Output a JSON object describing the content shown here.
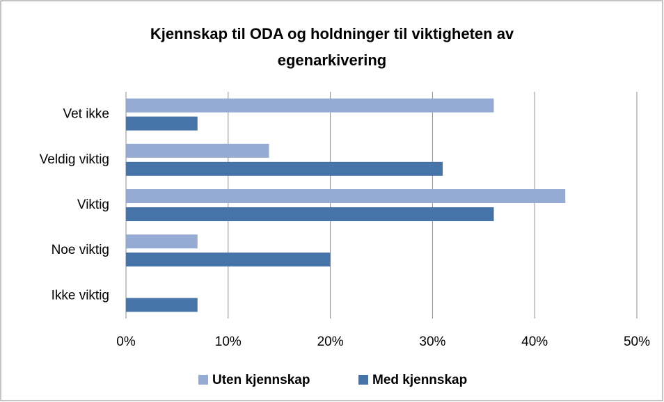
{
  "chart_data": {
    "type": "hbar",
    "title": "Kjennskap til ODA og holdninger til viktigheten av egenarkivering",
    "categories": [
      "Vet ikke",
      "Veldig viktig",
      "Viktig",
      "Noe viktig",
      "Ikke viktig"
    ],
    "series": [
      {
        "name": "Uten kjennskap",
        "color": "#95abd3",
        "values": [
          36,
          14,
          43,
          7,
          0
        ]
      },
      {
        "name": "Med kjennskap",
        "color": "#4673a8",
        "values": [
          7,
          31,
          36,
          20,
          7
        ]
      }
    ],
    "xlim": [
      0,
      50
    ],
    "xticks": [
      {
        "value": 0,
        "label": "0%"
      },
      {
        "value": 10,
        "label": "10%"
      },
      {
        "value": 20,
        "label": "20%"
      },
      {
        "value": 30,
        "label": "30%"
      },
      {
        "value": 40,
        "label": "40%"
      },
      {
        "value": 50,
        "label": "50%"
      }
    ],
    "grid": true,
    "legend": "bottom"
  }
}
